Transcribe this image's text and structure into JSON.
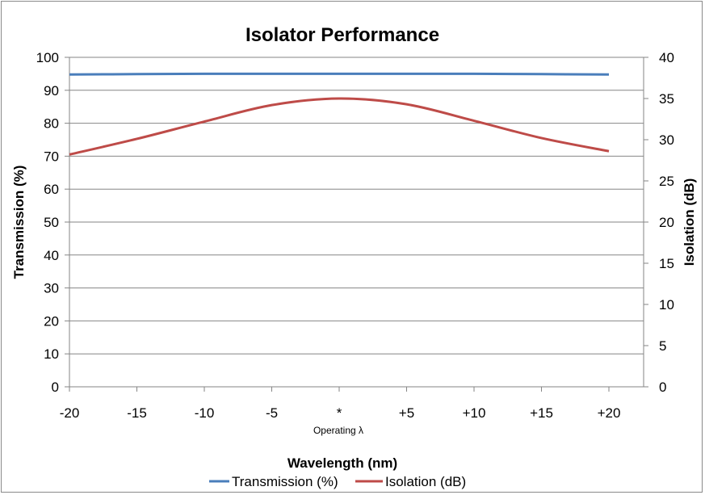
{
  "chart_data": {
    "type": "line",
    "title": "Isolator Performance",
    "xlabel": "Wavelength (nm)",
    "ylabel": "Transmission (%)",
    "y2label": "Isolation (dB)",
    "categories": [
      "-20",
      "-15",
      "-10",
      "-5",
      "*",
      "+5",
      "+10",
      "+15",
      "+20"
    ],
    "x_sublabel": "Operating λ",
    "x": [
      -20,
      -15,
      -10,
      -5,
      0,
      5,
      10,
      15,
      20
    ],
    "ylim": [
      0,
      100
    ],
    "y2lim": [
      0,
      40
    ],
    "yticks": [
      0,
      10,
      20,
      30,
      40,
      50,
      60,
      70,
      80,
      90,
      100
    ],
    "y2ticks": [
      0,
      5,
      10,
      15,
      20,
      25,
      30,
      35,
      40
    ],
    "grid": true,
    "legend": "bottom",
    "series": [
      {
        "name": "Transmission (%)",
        "axis": "left",
        "color": "#4a7ebb",
        "values": [
          94.8,
          94.9,
          95.0,
          95.0,
          95.0,
          95.0,
          95.0,
          94.9,
          94.8
        ]
      },
      {
        "name": "Isolation (dB)",
        "axis": "right",
        "color": "#be4b48",
        "values": [
          28.2,
          30.1,
          32.2,
          34.2,
          35.0,
          34.3,
          32.3,
          30.2,
          28.6
        ]
      }
    ]
  }
}
